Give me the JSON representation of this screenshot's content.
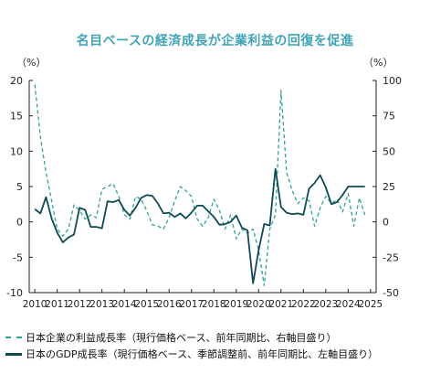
{
  "chart_data": {
    "type": "line",
    "title": "名目ベースの経済成長が企業利益の回復を促進",
    "left_axis": {
      "unit_label": "（%）",
      "ylim": [
        -10,
        20
      ],
      "ticks": [
        "20",
        "15",
        "10",
        "5",
        "0",
        "-5",
        "-10"
      ]
    },
    "right_axis": {
      "unit_label": "（%）",
      "ylim": [
        -50,
        100
      ],
      "ticks": [
        "100",
        "75",
        "50",
        "25",
        "0",
        "-25",
        "-50"
      ]
    },
    "xlim": [
      2009.75,
      2025.25
    ],
    "x_tick_labels": [
      "2010",
      "2011",
      "2012",
      "2013",
      "2014",
      "2015",
      "2016",
      "2017",
      "2018",
      "2019",
      "2020",
      "2021",
      "2022",
      "2023",
      "2024",
      "2025"
    ],
    "series": [
      {
        "name": "日本企業の利益成長率（現行価格ベース、前年同期比、右軸目盛り）",
        "axis": "right",
        "style": "dashed",
        "color": "#2aa598",
        "x": [
          2010.0,
          2010.25,
          2010.5,
          2010.75,
          2011.0,
          2011.25,
          2011.5,
          2011.75,
          2012.0,
          2012.25,
          2012.5,
          2012.75,
          2013.0,
          2013.25,
          2013.5,
          2013.75,
          2014.0,
          2014.25,
          2014.5,
          2014.75,
          2015.0,
          2015.25,
          2015.5,
          2015.75,
          2016.0,
          2016.25,
          2016.5,
          2016.75,
          2017.0,
          2017.25,
          2017.5,
          2017.75,
          2018.0,
          2018.25,
          2018.5,
          2018.75,
          2019.0,
          2019.25,
          2019.5,
          2019.75,
          2020.0,
          2020.25,
          2020.5,
          2020.75,
          2021.0,
          2021.25,
          2021.5,
          2021.75,
          2022.0,
          2022.25,
          2022.5,
          2022.75,
          2023.0,
          2023.25,
          2023.5,
          2023.75,
          2024.0,
          2024.25,
          2024.5,
          2024.75
        ],
        "y": [
          97,
          60,
          35,
          15,
          -5,
          -10,
          -5,
          12,
          8,
          2,
          5,
          3,
          23,
          25,
          27,
          18,
          5,
          2,
          18,
          16,
          8,
          -2,
          -3,
          -5,
          3,
          15,
          25,
          22,
          18,
          2,
          -3,
          3,
          16,
          8,
          -5,
          5,
          -12,
          -5,
          -8,
          -5,
          -20,
          -45,
          -5,
          5,
          93,
          35,
          22,
          13,
          17,
          15,
          -3,
          10,
          18,
          13,
          16,
          7,
          20,
          -3,
          17,
          5
        ]
      },
      {
        "name": "日本のGDP成長率（現行価格ベース、季節調整前、前年同期比、左軸目盛り）",
        "axis": "left",
        "style": "solid",
        "color": "#0e4a55",
        "x": [
          2010.0,
          2010.25,
          2010.5,
          2010.75,
          2011.0,
          2011.25,
          2011.5,
          2011.75,
          2012.0,
          2012.25,
          2012.5,
          2012.75,
          2013.0,
          2013.25,
          2013.5,
          2013.75,
          2014.0,
          2014.25,
          2014.5,
          2014.75,
          2015.0,
          2015.25,
          2015.5,
          2015.75,
          2016.0,
          2016.25,
          2016.5,
          2016.75,
          2017.0,
          2017.25,
          2017.5,
          2017.75,
          2018.0,
          2018.25,
          2018.5,
          2018.75,
          2019.0,
          2019.25,
          2019.5,
          2019.75,
          2020.0,
          2020.25,
          2020.5,
          2020.75,
          2021.0,
          2021.25,
          2021.5,
          2021.75,
          2022.0,
          2022.25,
          2022.5,
          2022.75,
          2023.0,
          2023.25,
          2023.5,
          2023.75,
          2024.0,
          2024.25,
          2024.5,
          2024.75
        ],
        "y": [
          1.8,
          1.2,
          3.5,
          0.5,
          -1.5,
          -2.9,
          -2.2,
          -1.8,
          2.0,
          1.7,
          -0.7,
          -0.7,
          -0.9,
          2.9,
          2.8,
          3.1,
          1.7,
          0.9,
          2.0,
          3.4,
          3.8,
          3.7,
          2.6,
          1.2,
          1.3,
          0.7,
          1.2,
          0.5,
          1.3,
          2.3,
          2.3,
          1.5,
          0.7,
          -0.4,
          -0.3,
          0.0,
          0.9,
          -0.8,
          -1.2,
          -8.7,
          -4.0,
          -0.3,
          -0.5,
          7.5,
          2.1,
          1.3,
          1.1,
          1.2,
          1.0,
          4.7,
          5.5,
          6.6,
          4.9,
          2.5,
          2.8,
          3.8,
          5.0,
          5.0,
          5.0,
          5.0
        ]
      }
    ]
  }
}
